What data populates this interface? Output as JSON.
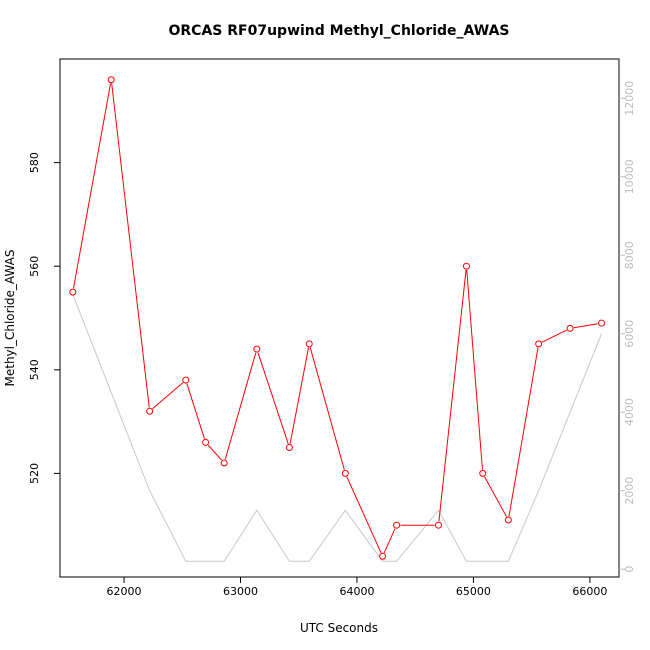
{
  "chart_data": {
    "type": "line",
    "title": "ORCAS RF07upwind Methyl_Chloride_AWAS",
    "xlabel": "UTC Seconds",
    "ylabel": "Methyl_Chloride_AWAS",
    "xlim": [
      61450,
      66250
    ],
    "ylim": [
      500,
      600
    ],
    "y2lim": [
      -200,
      13000
    ],
    "x_ticks": [
      62000,
      63000,
      64000,
      65000,
      66000
    ],
    "y_ticks": [
      520,
      540,
      560,
      580
    ],
    "y2_ticks": [
      0,
      2000,
      4000,
      6000,
      8000,
      10000,
      12000
    ],
    "series": [
      {
        "color": "#ff0000",
        "axis": "left",
        "marker": "open-circle",
        "x": [
          61560,
          61890,
          62220,
          62530,
          62700,
          62860,
          63140,
          63420,
          63590,
          63900,
          64220,
          64340,
          64700,
          64940,
          65080,
          65300,
          65560,
          65830,
          66100
        ],
        "y": [
          555,
          596,
          532,
          538,
          526,
          522,
          544,
          525,
          545,
          520,
          504,
          510,
          510,
          560,
          520,
          511,
          545,
          548,
          549
        ]
      },
      {
        "color": "#c8c8c8",
        "axis": "right",
        "marker": "none",
        "x": [
          61560,
          62220,
          62530,
          62860,
          63140,
          63420,
          63590,
          63900,
          64220,
          64340,
          64700,
          64940,
          65300,
          65560,
          66100
        ],
        "y": [
          7000,
          2000,
          200,
          200,
          1500,
          200,
          200,
          1500,
          200,
          200,
          1500,
          200,
          200,
          2000,
          6000
        ]
      }
    ]
  }
}
